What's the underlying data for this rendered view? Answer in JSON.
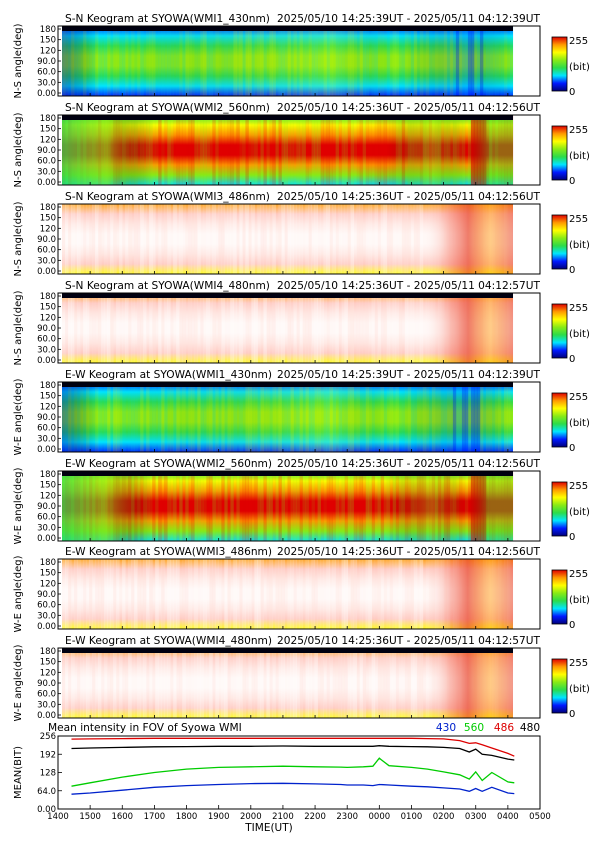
{
  "colors": {
    "palette": [
      "#00007a",
      "#0019ff",
      "#00e6ff",
      "#2cdc4a",
      "#88ea16",
      "#ffff00",
      "#ff9a00",
      "#e00000"
    ],
    "white_palette": [
      "#fff7f5",
      "#ffe5e0",
      "#ffc6bd",
      "#ff9585",
      "#f25a44",
      "#e63a20"
    ],
    "line_430": "#0022cc",
    "line_560": "#00cc00",
    "line_486": "#dd0000",
    "line_480": "#000000"
  },
  "colorbar": {
    "max_label": "255",
    "unit_label": "(bit)",
    "min_label": "0"
  },
  "time_axis": {
    "xlabel": "TIME(UT)",
    "ticks": [
      "1400",
      "1500",
      "1600",
      "1700",
      "1800",
      "1900",
      "2000",
      "2100",
      "2200",
      "2300",
      "0000",
      "0100",
      "0200",
      "0300",
      "0400",
      "0500"
    ],
    "range_hours": [
      14,
      29
    ]
  },
  "panels": [
    {
      "title": "S-N Keogram at SYOWA(WMI1_430nm)",
      "time_range": "2025/05/10 14:25:39UT - 2025/05/11 04:12:39UT",
      "ylabel": "N-S angle(deg)",
      "yticks": [
        "180",
        "150",
        "120",
        "90.0",
        "60.0",
        "30.0",
        "0.00"
      ],
      "style": "green"
    },
    {
      "title": "S-N Keogram at SYOWA(WMI2_560nm)",
      "time_range": "2025/05/10 14:25:36UT - 2025/05/11 04:12:56UT",
      "ylabel": "N-S angle(deg)",
      "yticks": [
        "180",
        "150",
        "120",
        "90.0",
        "60.0",
        "30.0",
        "0.00"
      ],
      "style": "red"
    },
    {
      "title": "S-N Keogram at SYOWA(WMI3_486nm)",
      "time_range": "2025/05/10 14:25:36UT - 2025/05/11 04:12:56UT",
      "ylabel": "N-S angle(deg)",
      "yticks": [
        "180",
        "150",
        "120",
        "90.0",
        "60.0",
        "30.0",
        "0.00"
      ],
      "style": "white"
    },
    {
      "title": "S-N Keogram at SYOWA(WMI4_480nm)",
      "time_range": "2025/05/10 14:25:36UT - 2025/05/11 04:12:57UT",
      "ylabel": "N-S angle(deg)",
      "yticks": [
        "180",
        "150",
        "120",
        "90.0",
        "60.0",
        "30.0",
        "0.00"
      ],
      "style": "white"
    },
    {
      "title": "E-W Keogram at SYOWA(WMI1_430nm)",
      "time_range": "2025/05/10 14:25:39UT - 2025/05/11 04:12:39UT",
      "ylabel": "W-E angle(deg)",
      "yticks": [
        "180",
        "150",
        "120",
        "90.0",
        "60.0",
        "30.0",
        "0.00"
      ],
      "style": "green"
    },
    {
      "title": "E-W Keogram at SYOWA(WMI2_560nm)",
      "time_range": "2025/05/10 14:25:36UT - 2025/05/11 04:12:56UT",
      "ylabel": "W-E angle(deg)",
      "yticks": [
        "180",
        "150",
        "120",
        "90.0",
        "60.0",
        "30.0",
        "0.00"
      ],
      "style": "red"
    },
    {
      "title": "E-W Keogram at SYOWA(WMI3_486nm)",
      "time_range": "2025/05/10 14:25:36UT - 2025/05/11 04:12:56UT",
      "ylabel": "W-E angle(deg)",
      "yticks": [
        "180",
        "150",
        "120",
        "90.0",
        "60.0",
        "30.0",
        "0.00"
      ],
      "style": "white"
    },
    {
      "title": "E-W Keogram at SYOWA(WMI4_480nm)",
      "time_range": "2025/05/10 14:25:36UT - 2025/05/11 04:12:57UT",
      "ylabel": "W-E angle(deg)",
      "yticks": [
        "180",
        "150",
        "120",
        "90.0",
        "60.0",
        "30.0",
        "0.00"
      ],
      "style": "white"
    }
  ],
  "chart_data": {
    "type": "line",
    "title": "Mean intensity in FOV of Syowa WMI",
    "xlabel": "TIME(UT)",
    "ylabel": "MEAN(BIT)",
    "yticks": [
      "256",
      "192",
      "128",
      "64.0",
      "0.00"
    ],
    "ylim": [
      0,
      256
    ],
    "xlim": [
      14,
      29
    ],
    "grid": false,
    "legend": "top-right",
    "x": [
      14.42,
      15,
      16,
      17,
      18,
      19,
      20,
      21,
      22,
      22.8,
      23,
      23.5,
      23.8,
      24,
      24.3,
      25,
      25.5,
      26,
      26.5,
      26.8,
      27,
      27.2,
      27.5,
      28,
      28.2
    ],
    "series": [
      {
        "name": "430",
        "color": "#0022cc",
        "values": [
          52,
          56,
          66,
          76,
          82,
          86,
          89,
          90,
          88,
          86,
          84,
          84,
          82,
          86,
          84,
          80,
          78,
          74,
          70,
          62,
          72,
          62,
          76,
          56,
          54
        ]
      },
      {
        "name": "560",
        "color": "#00cc00",
        "values": [
          80,
          92,
          112,
          128,
          140,
          146,
          148,
          150,
          148,
          147,
          146,
          148,
          150,
          178,
          152,
          146,
          140,
          130,
          120,
          105,
          130,
          100,
          128,
          95,
          92
        ]
      },
      {
        "name": "486",
        "color": "#dd0000",
        "values": [
          245,
          246,
          247,
          248,
          248,
          248,
          248,
          248,
          248,
          248,
          248,
          248,
          248,
          248,
          248,
          248,
          247,
          246,
          240,
          230,
          232,
          225,
          214,
          195,
          185
        ]
      },
      {
        "name": "480",
        "color": "#000000",
        "values": [
          212,
          214,
          216,
          218,
          219,
          220,
          220,
          221,
          220,
          220,
          220,
          220,
          220,
          222,
          220,
          219,
          218,
          216,
          212,
          200,
          210,
          192,
          188,
          175,
          172
        ]
      }
    ]
  }
}
